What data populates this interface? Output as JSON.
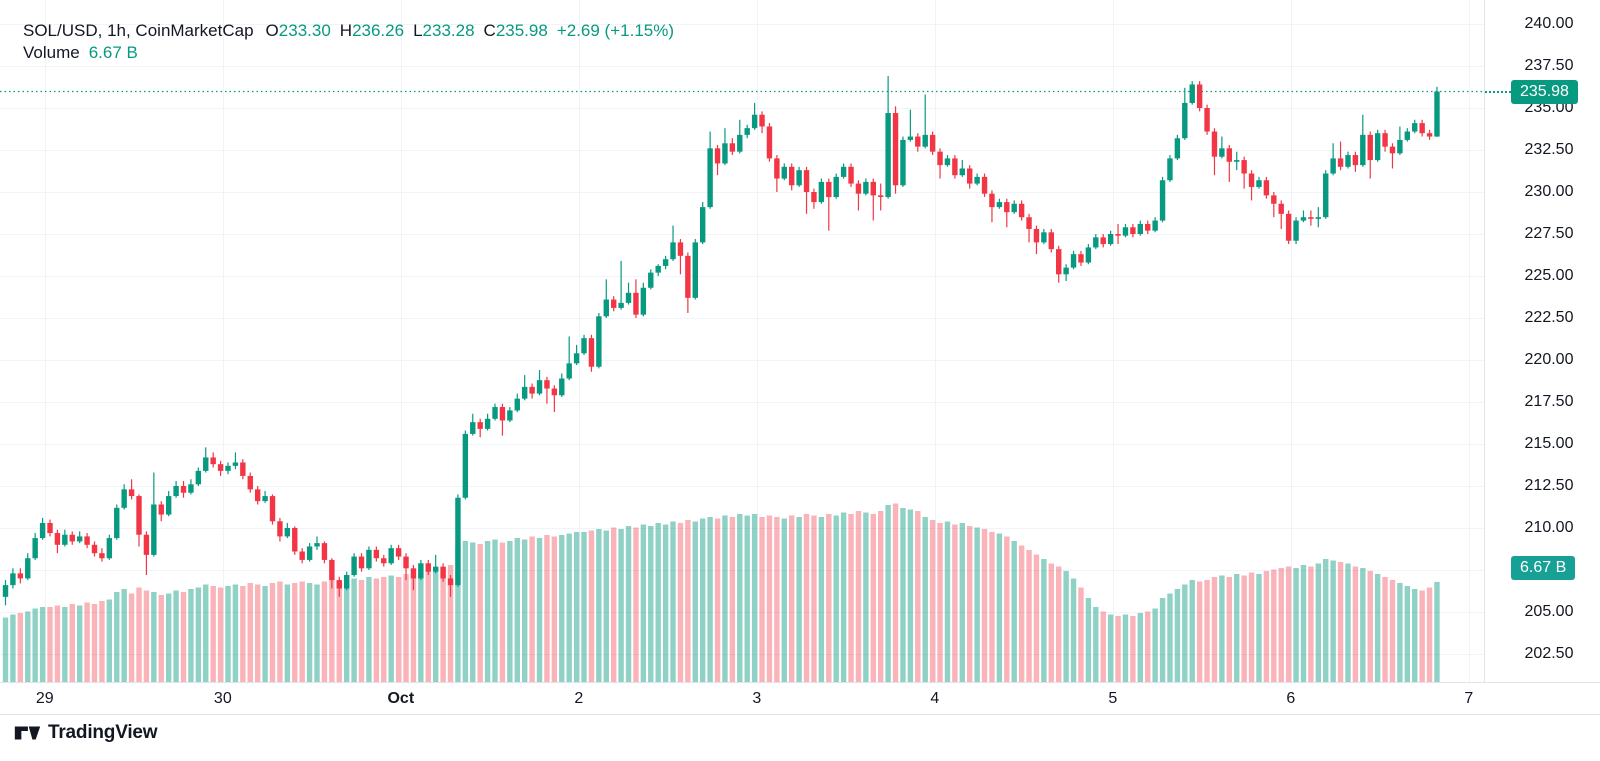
{
  "header": {
    "symbol_text": "SOL/USD, 1h, CoinMarketCap",
    "ohlc": [
      {
        "label": "O",
        "value": "233.30"
      },
      {
        "label": "H",
        "value": "236.26"
      },
      {
        "label": "L",
        "value": "233.28"
      },
      {
        "label": "C",
        "value": "235.98"
      }
    ],
    "change_text": "+2.69 (+1.15%)",
    "volume_label": "Volume",
    "volume_value": "6.67 B"
  },
  "price_scale": {
    "last_price_label": "235.98",
    "volume_badge_label": "6.67 B"
  },
  "attribution": {
    "logo_text": "TradingView"
  },
  "colors": {
    "up": "#089981",
    "down": "#f23645",
    "vol_up": "rgba(8,153,129,0.45)",
    "vol_down": "rgba(242,54,69,0.38)",
    "grid": "#f0f3fa",
    "axis_border": "#e0e3eb",
    "text": "#131722",
    "badge_price_bg": "#089981",
    "badge_volume_bg": "#16a194",
    "accent": "#089981"
  },
  "chart_data": {
    "type": "candlestick_with_volume",
    "title": "SOL/USD, 1h, CoinMarketCap",
    "symbol": "SOL/USD",
    "interval": "1h",
    "source": "CoinMarketCap",
    "legend_values": {
      "open": 233.3,
      "high": 236.26,
      "low": 233.28,
      "close": 235.98,
      "change_text": "+2.69 (+1.15%)",
      "volume": "6.67 B"
    },
    "last_price": 235.98,
    "last_volume_b": 6.67,
    "volume_unit": "B",
    "y_axis": {
      "ticks": [
        240,
        237.5,
        235,
        232.5,
        230,
        227.5,
        225,
        222.5,
        220,
        217.5,
        215,
        212.5,
        210,
        207.5,
        205,
        202.5
      ],
      "grid": true
    },
    "x_axis": {
      "ticks": [
        {
          "label": "29",
          "candle_index": 5.3
        },
        {
          "label": "30",
          "candle_index": 29.3
        },
        {
          "label": "Oct",
          "candle_index": 53.3,
          "bold": true
        },
        {
          "label": "2",
          "candle_index": 77.3
        },
        {
          "label": "3",
          "candle_index": 101.3
        },
        {
          "label": "4",
          "candle_index": 125.3
        },
        {
          "label": "5",
          "candle_index": 149.3
        },
        {
          "label": "6",
          "candle_index": 173.3
        },
        {
          "label": "7",
          "candle_index": 197.3
        }
      ]
    },
    "candles_format": [
      "open",
      "high",
      "low",
      "close",
      "volume_billions"
    ],
    "candles": [
      [
        205.9,
        206.9,
        205.4,
        206.6,
        4.3
      ],
      [
        206.6,
        207.6,
        206.4,
        207.3,
        4.5
      ],
      [
        207.3,
        207.6,
        206.7,
        207.0,
        4.6
      ],
      [
        207.0,
        208.5,
        206.9,
        208.2,
        4.7
      ],
      [
        208.2,
        209.7,
        208.1,
        209.4,
        4.9
      ],
      [
        209.4,
        210.6,
        209.3,
        210.3,
        5.0
      ],
      [
        210.3,
        210.5,
        209.5,
        209.7,
        5.0
      ],
      [
        209.7,
        209.9,
        208.5,
        209.0,
        5.1
      ],
      [
        209.0,
        209.9,
        208.9,
        209.6,
        5.0
      ],
      [
        209.6,
        209.8,
        209.0,
        209.2,
        5.2
      ],
      [
        209.2,
        209.8,
        209.1,
        209.5,
        5.1
      ],
      [
        209.5,
        209.7,
        208.8,
        209.0,
        5.3
      ],
      [
        209.0,
        209.2,
        208.3,
        208.5,
        5.2
      ],
      [
        208.5,
        208.8,
        208.0,
        208.2,
        5.4
      ],
      [
        208.2,
        209.6,
        208.1,
        209.4,
        5.5
      ],
      [
        209.4,
        211.4,
        209.3,
        211.2,
        6.0
      ],
      [
        211.2,
        212.6,
        211.1,
        212.3,
        6.2
      ],
      [
        212.3,
        212.9,
        211.7,
        211.9,
        5.9
      ],
      [
        211.9,
        212.0,
        208.9,
        209.6,
        6.3
      ],
      [
        209.6,
        209.8,
        207.2,
        208.4,
        6.1
      ],
      [
        208.4,
        213.3,
        208.3,
        211.4,
        6.0
      ],
      [
        211.4,
        211.6,
        210.4,
        210.8,
        5.8
      ],
      [
        210.8,
        212.2,
        210.7,
        211.9,
        5.9
      ],
      [
        211.9,
        212.8,
        211.8,
        212.5,
        6.1
      ],
      [
        212.5,
        212.8,
        211.8,
        212.1,
        6.0
      ],
      [
        212.1,
        212.9,
        212.0,
        212.6,
        6.2
      ],
      [
        212.6,
        213.6,
        212.5,
        213.4,
        6.3
      ],
      [
        213.4,
        214.8,
        213.3,
        214.2,
        6.5
      ],
      [
        214.2,
        214.5,
        213.6,
        213.8,
        6.4
      ],
      [
        213.8,
        214.0,
        213.1,
        213.4,
        6.3
      ],
      [
        213.4,
        213.9,
        213.2,
        213.7,
        6.4
      ],
      [
        213.7,
        214.5,
        213.5,
        213.9,
        6.5
      ],
      [
        213.9,
        214.1,
        212.9,
        213.1,
        6.4
      ],
      [
        213.1,
        213.3,
        212.1,
        212.3,
        6.6
      ],
      [
        212.3,
        212.5,
        211.4,
        211.6,
        6.5
      ],
      [
        211.6,
        212.2,
        211.5,
        211.9,
        6.4
      ],
      [
        211.9,
        212.0,
        210.2,
        210.4,
        6.6
      ],
      [
        210.4,
        210.6,
        209.2,
        209.5,
        6.7
      ],
      [
        209.5,
        210.3,
        209.4,
        210.0,
        6.5
      ],
      [
        210.0,
        210.1,
        208.4,
        208.6,
        6.6
      ],
      [
        208.6,
        208.8,
        207.9,
        208.1,
        6.7
      ],
      [
        208.1,
        209.1,
        208.0,
        208.9,
        6.6
      ],
      [
        208.9,
        209.5,
        208.7,
        209.1,
        6.5
      ],
      [
        209.1,
        209.2,
        207.9,
        208.1,
        6.7
      ],
      [
        208.1,
        208.2,
        206.4,
        206.9,
        6.8
      ],
      [
        206.9,
        207.1,
        205.9,
        206.4,
        6.7
      ],
      [
        206.4,
        207.4,
        206.3,
        207.2,
        6.8
      ],
      [
        207.2,
        208.5,
        207.1,
        208.3,
        6.9
      ],
      [
        208.3,
        208.5,
        207.4,
        207.6,
        6.8
      ],
      [
        207.6,
        208.9,
        207.5,
        208.7,
        7.0
      ],
      [
        208.7,
        208.9,
        208.0,
        208.2,
        6.9
      ],
      [
        208.2,
        208.4,
        207.7,
        207.9,
        7.0
      ],
      [
        207.9,
        209.0,
        207.8,
        208.8,
        7.1
      ],
      [
        208.8,
        209.0,
        208.1,
        208.3,
        7.0
      ],
      [
        208.3,
        208.5,
        206.9,
        207.6,
        7.2
      ],
      [
        207.6,
        207.8,
        206.3,
        207.0,
        7.3
      ],
      [
        207.0,
        208.1,
        206.9,
        207.9,
        7.2
      ],
      [
        207.9,
        208.1,
        207.2,
        207.4,
        7.4
      ],
      [
        207.4,
        208.4,
        207.3,
        207.7,
        7.5
      ],
      [
        207.7,
        207.9,
        206.8,
        207.0,
        7.6
      ],
      [
        207.0,
        207.2,
        205.9,
        206.6,
        7.8
      ],
      [
        206.6,
        212.0,
        206.5,
        211.8,
        9.0
      ],
      [
        211.8,
        215.8,
        211.7,
        215.6,
        9.4
      ],
      [
        215.6,
        216.8,
        215.5,
        216.3,
        9.3
      ],
      [
        216.3,
        216.5,
        215.4,
        215.9,
        9.2
      ],
      [
        215.9,
        216.8,
        215.8,
        216.5,
        9.4
      ],
      [
        216.5,
        217.4,
        216.4,
        217.2,
        9.5
      ],
      [
        217.2,
        217.4,
        215.5,
        216.4,
        9.3
      ],
      [
        216.4,
        217.2,
        216.3,
        217.0,
        9.4
      ],
      [
        217.0,
        218.0,
        216.9,
        217.7,
        9.6
      ],
      [
        217.7,
        219.1,
        217.6,
        218.4,
        9.5
      ],
      [
        218.4,
        218.6,
        217.7,
        218.0,
        9.7
      ],
      [
        218.0,
        219.4,
        217.9,
        218.8,
        9.6
      ],
      [
        218.8,
        219.0,
        217.4,
        218.3,
        9.8
      ],
      [
        218.3,
        218.5,
        216.9,
        217.9,
        9.7
      ],
      [
        217.9,
        219.2,
        217.8,
        218.9,
        9.8
      ],
      [
        218.9,
        221.4,
        218.8,
        219.8,
        9.9
      ],
      [
        219.8,
        220.9,
        219.7,
        220.4,
        10.0
      ],
      [
        220.4,
        221.5,
        220.3,
        221.3,
        10.0
      ],
      [
        221.3,
        221.5,
        219.3,
        219.6,
        10.1
      ],
      [
        219.6,
        222.8,
        219.5,
        222.6,
        10.2
      ],
      [
        222.6,
        224.8,
        222.5,
        223.6,
        10.1
      ],
      [
        223.6,
        223.8,
        222.9,
        223.1,
        10.3
      ],
      [
        223.1,
        225.9,
        223.0,
        223.4,
        10.2
      ],
      [
        223.4,
        224.6,
        223.3,
        224.0,
        10.4
      ],
      [
        224.0,
        224.8,
        222.5,
        222.7,
        10.3
      ],
      [
        222.7,
        224.6,
        222.6,
        224.3,
        10.5
      ],
      [
        224.3,
        225.4,
        224.2,
        225.2,
        10.4
      ],
      [
        225.2,
        225.7,
        225.0,
        225.6,
        10.6
      ],
      [
        225.6,
        226.2,
        225.4,
        226.0,
        10.5
      ],
      [
        226.0,
        228.0,
        225.9,
        227.0,
        10.7
      ],
      [
        227.0,
        227.2,
        225.1,
        226.2,
        10.6
      ],
      [
        226.2,
        226.4,
        222.8,
        223.7,
        10.8
      ],
      [
        223.7,
        227.2,
        223.6,
        227.0,
        10.7
      ],
      [
        227.0,
        229.4,
        226.9,
        229.1,
        10.9
      ],
      [
        229.1,
        233.6,
        229.0,
        232.6,
        11.0
      ],
      [
        232.6,
        232.8,
        231.0,
        231.7,
        10.9
      ],
      [
        231.7,
        233.8,
        231.6,
        232.9,
        11.1
      ],
      [
        232.9,
        233.2,
        232.2,
        232.4,
        11.0
      ],
      [
        232.4,
        234.3,
        232.3,
        233.4,
        11.2
      ],
      [
        233.4,
        234.0,
        233.2,
        233.8,
        11.1
      ],
      [
        233.8,
        235.3,
        233.7,
        234.6,
        11.2
      ],
      [
        234.6,
        234.8,
        233.5,
        233.9,
        11.0
      ],
      [
        233.9,
        234.1,
        231.8,
        232.0,
        11.1
      ],
      [
        232.0,
        232.2,
        230.0,
        230.8,
        11.0
      ],
      [
        230.8,
        231.7,
        230.7,
        231.5,
        10.9
      ],
      [
        231.5,
        231.7,
        230.1,
        230.4,
        11.1
      ],
      [
        230.4,
        231.5,
        230.3,
        231.3,
        11.0
      ],
      [
        231.3,
        231.5,
        228.7,
        230.0,
        11.2
      ],
      [
        230.0,
        230.2,
        229.0,
        229.4,
        11.1
      ],
      [
        229.4,
        230.8,
        229.3,
        230.6,
        11.0
      ],
      [
        230.6,
        230.8,
        227.7,
        229.7,
        11.2
      ],
      [
        229.7,
        231.1,
        229.6,
        230.9,
        11.1
      ],
      [
        230.9,
        231.7,
        230.8,
        231.5,
        11.3
      ],
      [
        231.5,
        231.7,
        230.3,
        230.5,
        11.2
      ],
      [
        230.5,
        230.7,
        228.9,
        229.9,
        11.4
      ],
      [
        229.9,
        230.8,
        229.8,
        230.6,
        11.3
      ],
      [
        230.6,
        230.8,
        228.3,
        229.8,
        11.2
      ],
      [
        229.8,
        230.5,
        228.9,
        229.7,
        11.4
      ],
      [
        229.7,
        236.9,
        229.6,
        234.7,
        11.8
      ],
      [
        234.7,
        235.1,
        229.9,
        230.4,
        11.9
      ],
      [
        230.4,
        233.3,
        230.3,
        233.1,
        11.6
      ],
      [
        233.1,
        234.9,
        233.0,
        233.3,
        11.5
      ],
      [
        233.3,
        233.5,
        232.4,
        232.7,
        11.4
      ],
      [
        232.7,
        235.8,
        232.6,
        233.4,
        11.0
      ],
      [
        233.4,
        233.6,
        232.2,
        232.4,
        10.8
      ],
      [
        232.4,
        232.6,
        230.8,
        231.6,
        10.6
      ],
      [
        231.6,
        232.2,
        231.5,
        232.0,
        10.7
      ],
      [
        232.0,
        232.2,
        230.8,
        231.0,
        10.5
      ],
      [
        231.0,
        231.9,
        230.9,
        231.4,
        10.6
      ],
      [
        231.4,
        231.6,
        230.2,
        230.5,
        10.4
      ],
      [
        230.5,
        231.1,
        230.4,
        230.9,
        10.3
      ],
      [
        230.9,
        231.1,
        229.7,
        229.9,
        10.2
      ],
      [
        229.9,
        230.1,
        228.2,
        229.1,
        10.0
      ],
      [
        229.1,
        229.6,
        229.0,
        229.4,
        9.9
      ],
      [
        229.4,
        229.6,
        227.9,
        228.8,
        9.7
      ],
      [
        228.8,
        229.5,
        228.7,
        229.3,
        9.4
      ],
      [
        229.3,
        229.5,
        228.3,
        228.5,
        9.1
      ],
      [
        228.5,
        228.7,
        227.0,
        227.8,
        8.8
      ],
      [
        227.8,
        228.0,
        226.3,
        227.0,
        8.5
      ],
      [
        227.0,
        227.8,
        226.9,
        227.6,
        8.2
      ],
      [
        227.6,
        227.8,
        226.4,
        226.6,
        7.9
      ],
      [
        226.6,
        226.8,
        224.6,
        225.1,
        7.7
      ],
      [
        225.1,
        225.7,
        224.7,
        225.5,
        7.4
      ],
      [
        225.5,
        226.5,
        225.4,
        226.3,
        6.9
      ],
      [
        226.3,
        226.5,
        225.6,
        225.8,
        6.3
      ],
      [
        225.8,
        226.9,
        225.7,
        226.7,
        5.6
      ],
      [
        226.7,
        227.5,
        226.6,
        227.3,
        5.0
      ],
      [
        227.3,
        227.5,
        226.7,
        226.9,
        4.7
      ],
      [
        226.9,
        227.7,
        226.8,
        227.5,
        4.5
      ],
      [
        227.5,
        228.1,
        226.9,
        227.4,
        4.4
      ],
      [
        227.4,
        228.1,
        227.3,
        227.9,
        4.5
      ],
      [
        227.9,
        228.1,
        227.3,
        227.5,
        4.4
      ],
      [
        227.5,
        228.3,
        227.4,
        228.1,
        4.6
      ],
      [
        228.1,
        228.3,
        227.5,
        227.7,
        4.7
      ],
      [
        227.7,
        228.5,
        227.6,
        228.3,
        4.9
      ],
      [
        228.3,
        230.9,
        228.2,
        230.7,
        5.6
      ],
      [
        230.7,
        232.2,
        230.6,
        232.0,
        5.9
      ],
      [
        232.0,
        233.4,
        231.9,
        233.2,
        6.2
      ],
      [
        233.2,
        236.2,
        233.1,
        235.3,
        6.5
      ],
      [
        235.3,
        236.6,
        235.2,
        236.4,
        6.8
      ],
      [
        236.4,
        236.6,
        234.8,
        235.0,
        6.7
      ],
      [
        235.0,
        235.2,
        233.4,
        233.6,
        6.8
      ],
      [
        233.6,
        233.8,
        231.0,
        232.1,
        7.0
      ],
      [
        232.1,
        233.3,
        232.0,
        232.6,
        7.1
      ],
      [
        232.6,
        232.8,
        230.6,
        231.8,
        7.0
      ],
      [
        231.8,
        232.4,
        231.3,
        231.9,
        7.2
      ],
      [
        231.9,
        232.1,
        230.2,
        231.1,
        7.1
      ],
      [
        231.1,
        231.3,
        229.5,
        230.3,
        7.3
      ],
      [
        230.3,
        230.9,
        230.2,
        230.7,
        7.2
      ],
      [
        230.7,
        230.9,
        229.6,
        229.8,
        7.4
      ],
      [
        229.8,
        230.0,
        228.5,
        229.3,
        7.5
      ],
      [
        229.3,
        229.5,
        227.8,
        228.7,
        7.6
      ],
      [
        228.7,
        228.9,
        226.9,
        227.1,
        7.7
      ],
      [
        227.1,
        228.5,
        226.9,
        228.3,
        7.6
      ],
      [
        228.3,
        228.9,
        228.2,
        228.5,
        7.8
      ],
      [
        228.5,
        228.9,
        228.0,
        228.4,
        7.7
      ],
      [
        228.4,
        229.1,
        227.9,
        228.5,
        7.9
      ],
      [
        228.5,
        231.3,
        228.4,
        231.1,
        8.2
      ],
      [
        231.1,
        232.9,
        231.0,
        232.0,
        8.1
      ],
      [
        232.0,
        233.0,
        231.3,
        231.5,
        8.0
      ],
      [
        231.5,
        232.4,
        231.4,
        232.2,
        7.9
      ],
      [
        232.2,
        232.4,
        231.2,
        231.6,
        7.7
      ],
      [
        231.6,
        234.6,
        231.5,
        233.4,
        7.6
      ],
      [
        233.4,
        233.6,
        230.8,
        231.9,
        7.4
      ],
      [
        231.9,
        233.7,
        231.8,
        233.5,
        7.2
      ],
      [
        233.5,
        233.7,
        232.4,
        232.7,
        7.0
      ],
      [
        232.7,
        232.9,
        231.4,
        232.3,
        6.8
      ],
      [
        232.3,
        233.9,
        232.2,
        233.1,
        6.6
      ],
      [
        233.1,
        233.8,
        233.0,
        233.6,
        6.4
      ],
      [
        233.6,
        234.3,
        233.5,
        234.1,
        6.2
      ],
      [
        234.1,
        234.3,
        233.3,
        233.5,
        6.1
      ],
      [
        233.5,
        233.7,
        233.1,
        233.3,
        6.3
      ],
      [
        233.3,
        236.26,
        233.28,
        235.98,
        6.67
      ]
    ]
  }
}
